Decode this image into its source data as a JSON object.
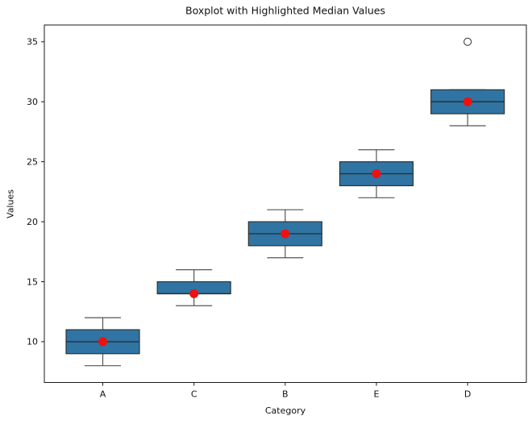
{
  "chart_data": {
    "type": "boxplot",
    "title": "Boxplot with Highlighted Median Values",
    "xlabel": "Category",
    "ylabel": "Values",
    "categories": [
      "A",
      "C",
      "B",
      "E",
      "D"
    ],
    "boxes": [
      {
        "category": "A",
        "whislo": 8,
        "q1": 9,
        "med": 10,
        "q3": 11,
        "whishi": 12,
        "outliers": []
      },
      {
        "category": "C",
        "whislo": 13,
        "q1": 14,
        "med": 14,
        "q3": 15,
        "whishi": 16,
        "outliers": []
      },
      {
        "category": "B",
        "whislo": 17,
        "q1": 18,
        "med": 19,
        "q3": 20,
        "whishi": 21,
        "outliers": []
      },
      {
        "category": "E",
        "whislo": 22,
        "q1": 23,
        "med": 24,
        "q3": 25,
        "whishi": 26,
        "outliers": []
      },
      {
        "category": "D",
        "whislo": 28,
        "q1": 29,
        "med": 30,
        "q3": 31,
        "whishi": 31,
        "outliers": [
          35
        ]
      }
    ],
    "median_highlight_values": [
      10,
      14,
      19,
      24,
      30
    ],
    "yticks": [
      10,
      15,
      20,
      25,
      30,
      35
    ],
    "ylim": [
      6.6,
      36.4
    ],
    "grid": false,
    "legend": null,
    "colors": {
      "box_fill": "#3074a3",
      "box_edge": "#333333",
      "whisker": "#555555",
      "cap": "#555555",
      "median_line": "#2b3036",
      "median_dot": "#ee1111",
      "outlier_edge": "#3f3f3f",
      "frame": "#1a1a1a"
    }
  }
}
